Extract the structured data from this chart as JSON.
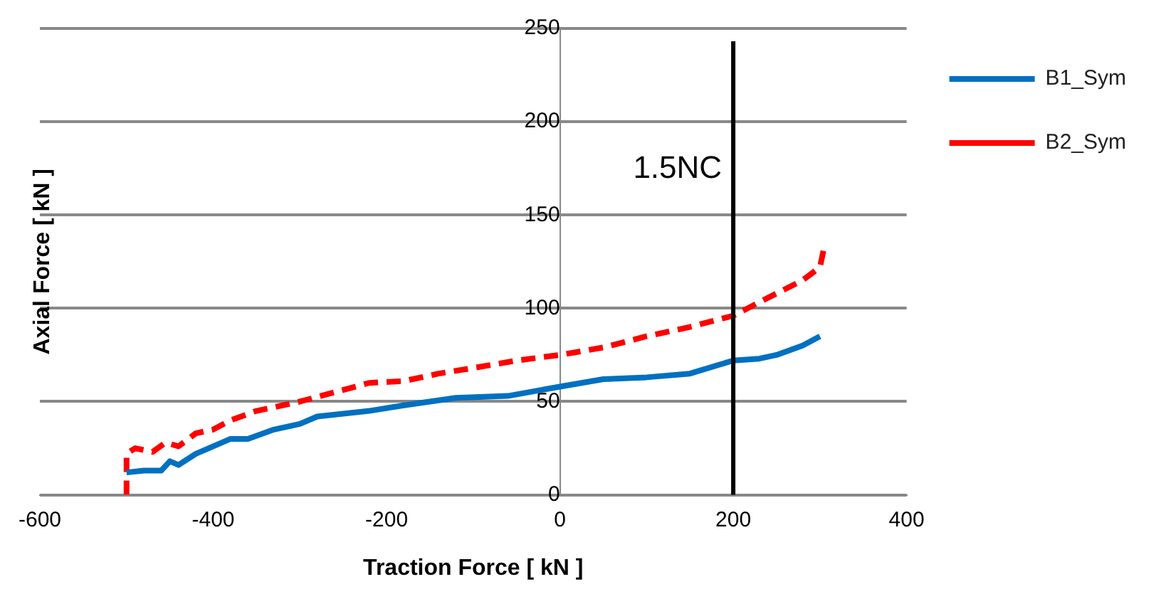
{
  "chart_data": {
    "type": "line",
    "xlabel": "Traction Force [ kN ]",
    "ylabel": "Axial Force [ kN ]",
    "xlim": [
      -600,
      400
    ],
    "xticks": [
      -600,
      -400,
      -200,
      0,
      200,
      400
    ],
    "ylim": [
      0,
      250
    ],
    "yticks": [
      0,
      50,
      100,
      150,
      200,
      250
    ],
    "grid": "y",
    "legend": "right",
    "marker": "none",
    "series": [
      {
        "name": "B1_Sym",
        "color": "#0070c0",
        "line_style": "solid",
        "x": [
          -500,
          -480,
          -460,
          -450,
          -440,
          -420,
          -400,
          -380,
          -360,
          -330,
          -300,
          -280,
          -220,
          -180,
          -120,
          -60,
          0,
          50,
          100,
          150,
          200,
          230,
          250,
          280,
          300
        ],
        "values": [
          12,
          13,
          13,
          18,
          16,
          22,
          26,
          30,
          30,
          35,
          38,
          42,
          45,
          48,
          52,
          53,
          58,
          62,
          63,
          65,
          72,
          73,
          75,
          80,
          85
        ]
      },
      {
        "name": "B2_Sym",
        "color": "#ff0000",
        "line_style": "dashed",
        "x": [
          -500,
          -500,
          -490,
          -470,
          -455,
          -440,
          -420,
          -400,
          -380,
          -350,
          -320,
          -300,
          -260,
          -220,
          -180,
          -140,
          -100,
          -50,
          0,
          50,
          100,
          150,
          200,
          250,
          280,
          300,
          305
        ],
        "values": [
          0,
          22,
          25,
          23,
          28,
          26,
          33,
          35,
          40,
          45,
          48,
          50,
          55,
          60,
          61,
          65,
          68,
          72,
          75,
          79,
          85,
          90,
          96,
          108,
          115,
          122,
          133
        ]
      }
    ],
    "ref_lines": [
      {
        "axis": "x",
        "value": 200,
        "label": "1.5NC",
        "color": "#000000"
      }
    ]
  }
}
